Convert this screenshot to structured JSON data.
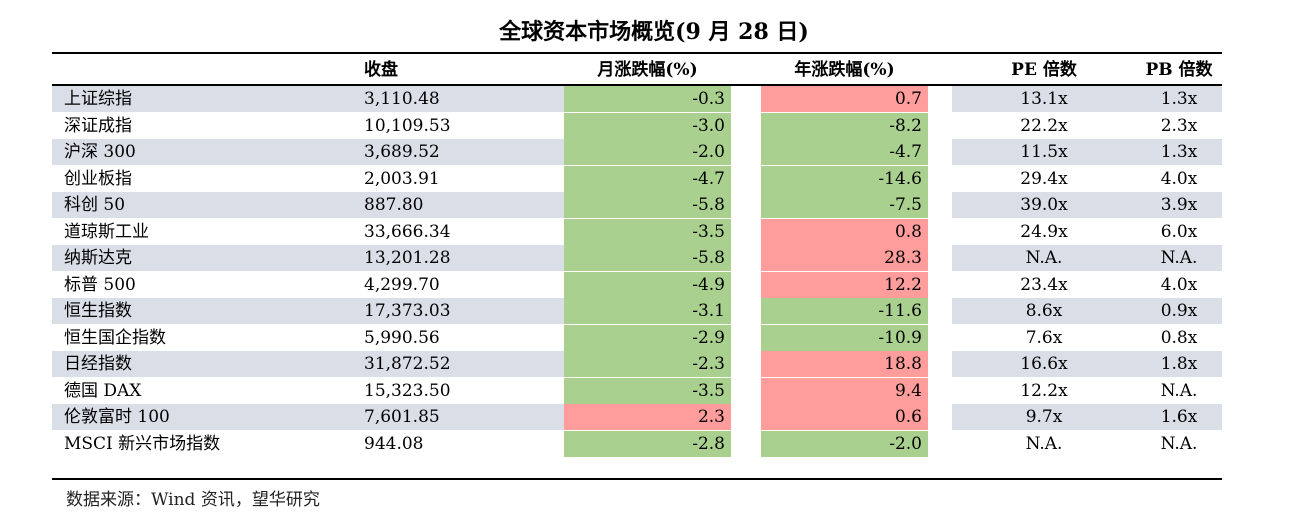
{
  "title": "全球资本市场概览(9 月 28 日)",
  "headers": {
    "close": "收盘",
    "monthly": "月涨跌幅(%)",
    "yearly": "年涨跌幅(%)",
    "pe": "PE 倍数",
    "pb": "PB 倍数"
  },
  "colors": {
    "shade": "#d9dee7",
    "green": "#a9d08e",
    "red": "#ff9c9c"
  },
  "rows": [
    {
      "name": "上证综指",
      "close": "3,110.48",
      "monthly": "-0.3",
      "yearly": "0.7",
      "pe": "13.1x",
      "pb": "1.3x",
      "monthly_color": "green",
      "yearly_color": "red"
    },
    {
      "name": "深证成指",
      "close": "10,109.53",
      "monthly": "-3.0",
      "yearly": "-8.2",
      "pe": "22.2x",
      "pb": "2.3x",
      "monthly_color": "green",
      "yearly_color": "green"
    },
    {
      "name": "沪深 300",
      "close": "3,689.52",
      "monthly": "-2.0",
      "yearly": "-4.7",
      "pe": "11.5x",
      "pb": "1.3x",
      "monthly_color": "green",
      "yearly_color": "green"
    },
    {
      "name": "创业板指",
      "close": "2,003.91",
      "monthly": "-4.7",
      "yearly": "-14.6",
      "pe": "29.4x",
      "pb": "4.0x",
      "monthly_color": "green",
      "yearly_color": "green"
    },
    {
      "name": "科创 50",
      "close": "887.80",
      "monthly": "-5.8",
      "yearly": "-7.5",
      "pe": "39.0x",
      "pb": "3.9x",
      "monthly_color": "green",
      "yearly_color": "green"
    },
    {
      "name": "道琼斯工业",
      "close": "33,666.34",
      "monthly": "-3.5",
      "yearly": "0.8",
      "pe": "24.9x",
      "pb": "6.0x",
      "monthly_color": "green",
      "yearly_color": "red"
    },
    {
      "name": "纳斯达克",
      "close": "13,201.28",
      "monthly": "-5.8",
      "yearly": "28.3",
      "pe": "N.A.",
      "pb": "N.A.",
      "monthly_color": "green",
      "yearly_color": "red"
    },
    {
      "name": "标普 500",
      "close": "4,299.70",
      "monthly": "-4.9",
      "yearly": "12.2",
      "pe": "23.4x",
      "pb": "4.0x",
      "monthly_color": "green",
      "yearly_color": "red"
    },
    {
      "name": "恒生指数",
      "close": "17,373.03",
      "monthly": "-3.1",
      "yearly": "-11.6",
      "pe": "8.6x",
      "pb": "0.9x",
      "monthly_color": "green",
      "yearly_color": "green"
    },
    {
      "name": "恒生国企指数",
      "close": "5,990.56",
      "monthly": "-2.9",
      "yearly": "-10.9",
      "pe": "7.6x",
      "pb": "0.8x",
      "monthly_color": "green",
      "yearly_color": "green"
    },
    {
      "name": "日经指数",
      "close": "31,872.52",
      "monthly": "-2.3",
      "yearly": "18.8",
      "pe": "16.6x",
      "pb": "1.8x",
      "monthly_color": "green",
      "yearly_color": "red"
    },
    {
      "name": "德国 DAX",
      "close": "15,323.50",
      "monthly": "-3.5",
      "yearly": "9.4",
      "pe": "12.2x",
      "pb": "N.A.",
      "monthly_color": "green",
      "yearly_color": "red"
    },
    {
      "name": "伦敦富时 100",
      "close": "7,601.85",
      "monthly": "2.3",
      "yearly": "0.6",
      "pe": "9.7x",
      "pb": "1.6x",
      "monthly_color": "red",
      "yearly_color": "red"
    },
    {
      "name": "MSCI 新兴市场指数",
      "close": "944.08",
      "monthly": "-2.8",
      "yearly": "-2.0",
      "pe": "N.A.",
      "pb": "N.A.",
      "monthly_color": "green",
      "yearly_color": "green"
    }
  ],
  "source": "数据来源：Wind 资讯，望华研究"
}
